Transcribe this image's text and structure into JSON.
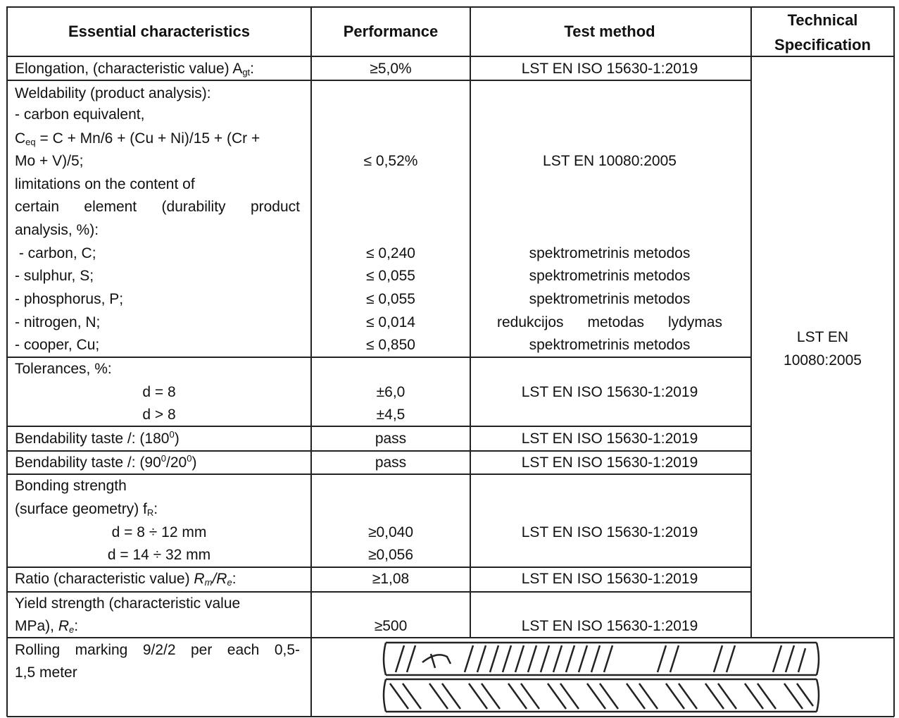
{
  "header": {
    "characteristics": "Essential characteristics",
    "performance": "Performance",
    "test_method": "Test method",
    "specification": [
      "Technical",
      "Specification"
    ]
  },
  "specification": [
    "LST EN",
    "10080:2005"
  ],
  "rows": [
    {
      "characteristic": [
        "Elongation, (characteristic value) A",
        "gt",
        ":"
      ],
      "performance": "≥5,0%",
      "test_method": "LST EN ISO 15630-1:2019"
    },
    {
      "characteristic": [
        "Weldability (product analysis):",
        "- carbon equivalent,",
        [
          "C",
          "eq",
          " = C + Mn/6 + (Cu + Ni)/15 + (Cr +"
        ],
        "Mo + V)/5;",
        "limitations on the content of",
        "certain element (durability product",
        "analysis, %):",
        " - carbon, C;",
        "- sulphur, S;",
        "- phosphorus, P;",
        "- nitrogen, N;",
        "- cooper, Cu;"
      ],
      "performance": [
        "≤ 0,52%",
        "≤ 0,240",
        "≤ 0,055",
        "≤ 0,055",
        "≤ 0,014",
        "≤ 0,850"
      ],
      "test_method": [
        "LST EN 10080:2005",
        "spektrometrinis metodos",
        "spektrometrinis metodos",
        "spektrometrinis metodos",
        "redukcijos metodas lydymas",
        "spektrometrinis metodos"
      ]
    },
    {
      "characteristic": [
        "Tolerances, %:",
        "d = 8",
        "d > 8"
      ],
      "performance": [
        "±6,0",
        "±4,5"
      ],
      "test_method": "LST EN ISO 15630-1:2019"
    },
    {
      "characteristic": [
        "Bendability taste /: (180",
        "0",
        ")"
      ],
      "performance": "pass",
      "test_method": "LST EN ISO 15630-1:2019"
    },
    {
      "characteristic": [
        "Bendability taste /: (90",
        "0",
        "/20",
        "0",
        ")"
      ],
      "performance": "pass",
      "test_method": "LST EN ISO 15630-1:2019"
    },
    {
      "characteristic": [
        "Bonding strength",
        [
          "(surface geometry) f",
          "R",
          ":"
        ],
        "d = 8 ÷ 12 mm",
        "d = 14 ÷ 32 mm"
      ],
      "performance": [
        "≥0,040",
        "≥0,056"
      ],
      "test_method": "LST EN ISO 15630-1:2019"
    },
    {
      "characteristic": [
        "Ratio (characteristic value) ",
        "R",
        "m",
        "/",
        "R",
        "e",
        ":"
      ],
      "performance": "≥1,08",
      "test_method": "LST EN ISO 15630-1:2019"
    },
    {
      "characteristic": [
        "Yield strength (characteristic value",
        [
          "MPa), ",
          "R",
          "e",
          ":"
        ]
      ],
      "performance": "≥500",
      "test_method": "LST EN ISO 15630-1:2019"
    },
    {
      "characteristic": [
        "Rolling marking 9/2/2 per each 0,5-",
        "1,5 meter"
      ]
    }
  ]
}
